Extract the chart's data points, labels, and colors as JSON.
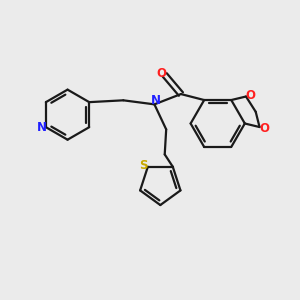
{
  "bg_color": "#ebebeb",
  "bond_color": "#1a1a1a",
  "atom_colors": {
    "N": "#2020ff",
    "O": "#ff2020",
    "S": "#c8a800",
    "C": "#1a1a1a"
  },
  "figsize": [
    3.0,
    3.0
  ],
  "dpi": 100
}
